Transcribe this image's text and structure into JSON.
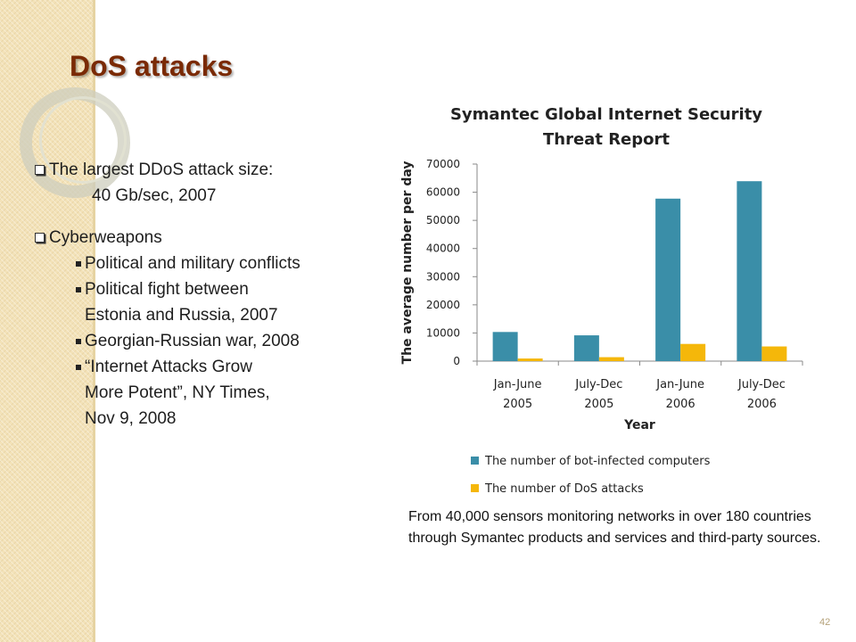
{
  "slide": {
    "title": "DoS attacks",
    "bullets": {
      "attack_size_label": "The largest DDoS attack size:",
      "attack_size_value": "40 Gb/sec, 2007",
      "cyberweapons_label": "Cyberweapons",
      "sub_items": [
        [
          "Political and military conflicts"
        ],
        [
          "Political fight between",
          "Estonia and Russia, 2007"
        ],
        [
          "Georgian-Russian war, 2008"
        ],
        [
          "“Internet Attacks Grow",
          "More Potent”, NY Times,",
          "Nov 9, 2008"
        ]
      ]
    },
    "source_note": "From 40,000 sensors monitoring networks in over 180 countries through Symantec products and services and third-party sources.",
    "page_number": "42",
    "colors": {
      "title": "#7a2a05",
      "bot_series": "#3a8ea8",
      "dos_series": "#f5b70a",
      "side_band": "#f3e2b8"
    }
  },
  "chart_data": {
    "type": "bar",
    "title_lines": [
      "Symantec Global Internet Security",
      "Threat Report"
    ],
    "xlabel": "Year",
    "ylabel": "The average number per day",
    "categories": [
      [
        "Jan-June",
        "2005"
      ],
      [
        "July-Dec",
        "2005"
      ],
      [
        "Jan-June",
        "2006"
      ],
      [
        "July-Dec",
        "2006"
      ]
    ],
    "series": [
      {
        "name": "The number of bot-infected computers",
        "color": "#3a8ea8",
        "values": [
          10352,
          9163,
          57717,
          63912
        ]
      },
      {
        "name": "The number of DoS attacks",
        "color": "#f5b70a",
        "values": [
          927,
          1402,
          6110,
          5213
        ]
      }
    ],
    "ylim": [
      0,
      70000
    ],
    "yticks": [
      0,
      10000,
      20000,
      30000,
      40000,
      50000,
      60000,
      70000
    ],
    "grid": false,
    "legend_position": "bottom"
  }
}
